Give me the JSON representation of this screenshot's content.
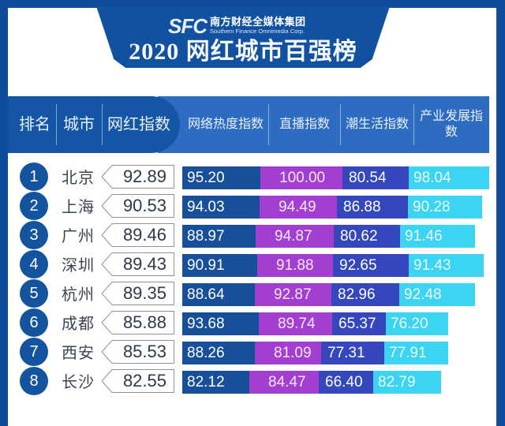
{
  "header": {
    "logo_mark": "SFC",
    "logo_cn": "南方财经全媒体集团",
    "logo_en": "Southern Finance Omnimedia Corp.",
    "title": "2020 网红城市百强榜"
  },
  "columns": {
    "rank": "排名",
    "city": "城市",
    "index": "网红指数",
    "heat": "网络热度指数",
    "live": "直播指数",
    "trend": "潮生活指数",
    "industry": "产业发展指数"
  },
  "colors": {
    "frame": "#0f4c9a",
    "heat": "#174f9b",
    "live": "#a23fd1",
    "trend": "#3447bd",
    "industry": "#3dd4f3"
  },
  "chart_data": {
    "type": "bar",
    "stacked": true,
    "orientation": "horizontal",
    "title": "2020 网红城市百强榜",
    "categories": [
      "北京",
      "上海",
      "广州",
      "深圳",
      "杭州",
      "成都",
      "西安",
      "长沙"
    ],
    "ranks": [
      1,
      2,
      3,
      4,
      5,
      6,
      7,
      8
    ],
    "overall_index": [
      92.89,
      90.53,
      89.46,
      89.43,
      89.35,
      85.88,
      85.53,
      82.55
    ],
    "series": [
      {
        "name": "网络热度指数",
        "values": [
          95.2,
          94.03,
          88.97,
          90.91,
          88.64,
          93.68,
          88.26,
          82.12
        ]
      },
      {
        "name": "直播指数",
        "values": [
          100.0,
          94.49,
          94.87,
          91.88,
          92.87,
          89.74,
          81.09,
          84.47
        ]
      },
      {
        "name": "潮生活指数",
        "values": [
          80.54,
          86.88,
          80.62,
          92.65,
          82.96,
          65.37,
          77.31,
          66.4
        ]
      },
      {
        "name": "产业发展指数",
        "values": [
          98.04,
          90.28,
          91.46,
          91.43,
          92.48,
          76.2,
          77.91,
          82.79
        ]
      }
    ],
    "xlabel": "",
    "ylabel": "",
    "grid": false,
    "legend_position": "top (column headers)"
  },
  "rows": [
    {
      "rank": "1",
      "city": "北京",
      "index": "92.89",
      "heat": "95.20",
      "live": "100.00",
      "trend": "80.54",
      "industry": "98.04"
    },
    {
      "rank": "2",
      "city": "上海",
      "index": "90.53",
      "heat": "94.03",
      "live": "94.49",
      "trend": "86.88",
      "industry": "90.28"
    },
    {
      "rank": "3",
      "city": "广州",
      "index": "89.46",
      "heat": "88.97",
      "live": "94.87",
      "trend": "80.62",
      "industry": "91.46"
    },
    {
      "rank": "4",
      "city": "深圳",
      "index": "89.43",
      "heat": "90.91",
      "live": "91.88",
      "trend": "92.65",
      "industry": "91.43"
    },
    {
      "rank": "5",
      "city": "杭州",
      "index": "89.35",
      "heat": "88.64",
      "live": "92.87",
      "trend": "82.96",
      "industry": "92.48"
    },
    {
      "rank": "6",
      "city": "成都",
      "index": "85.88",
      "heat": "93.68",
      "live": "89.74",
      "trend": "65.37",
      "industry": "76.20"
    },
    {
      "rank": "7",
      "city": "西安",
      "index": "85.53",
      "heat": "88.26",
      "live": "81.09",
      "trend": "77.31",
      "industry": "77.91"
    },
    {
      "rank": "8",
      "city": "长沙",
      "index": "82.55",
      "heat": "82.12",
      "live": "84.47",
      "trend": "66.40",
      "industry": "82.79"
    }
  ]
}
